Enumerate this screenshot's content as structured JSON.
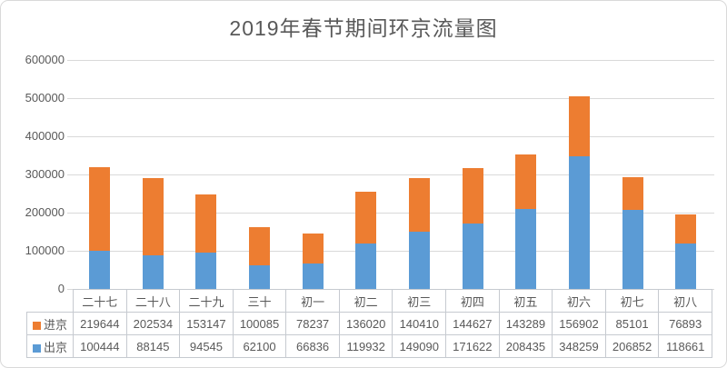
{
  "chart_data": {
    "type": "bar",
    "stacked": true,
    "title": "2019年春节期间环京流量图",
    "categories": [
      "二十七",
      "二十八",
      "二十九",
      "三十",
      "初一",
      "初二",
      "初三",
      "初四",
      "初五",
      "初六",
      "初七",
      "初八"
    ],
    "series": [
      {
        "name": "进京",
        "color": "#ed7d31",
        "values": [
          219644,
          202534,
          153147,
          100085,
          78237,
          136020,
          140410,
          144627,
          143289,
          156902,
          85101,
          76893
        ]
      },
      {
        "name": "出京",
        "color": "#5b9bd5",
        "values": [
          100444,
          88145,
          94545,
          62100,
          66836,
          119932,
          149090,
          171622,
          208435,
          348259,
          206852,
          118661
        ]
      }
    ],
    "stack_bottom_to_top": [
      "出京",
      "进京"
    ],
    "y_axis": {
      "min": 0,
      "max": 600000,
      "step": 100000,
      "tick_labels_top_to_bottom": [
        "600000",
        "500000",
        "400000",
        "300000",
        "200000",
        "100000",
        "0"
      ]
    },
    "grid": true,
    "legend_position": "left-of-data-table",
    "data_table_shown": true
  },
  "colors": {
    "in_beijing_bar": "#ed7d31",
    "out_beijing_bar": "#5b9bd5",
    "gridline": "#d9d9d9",
    "table_border": "#c6cad0",
    "text": "#595959",
    "frame_border": "#d9d9d9",
    "background": "#ffffff"
  }
}
